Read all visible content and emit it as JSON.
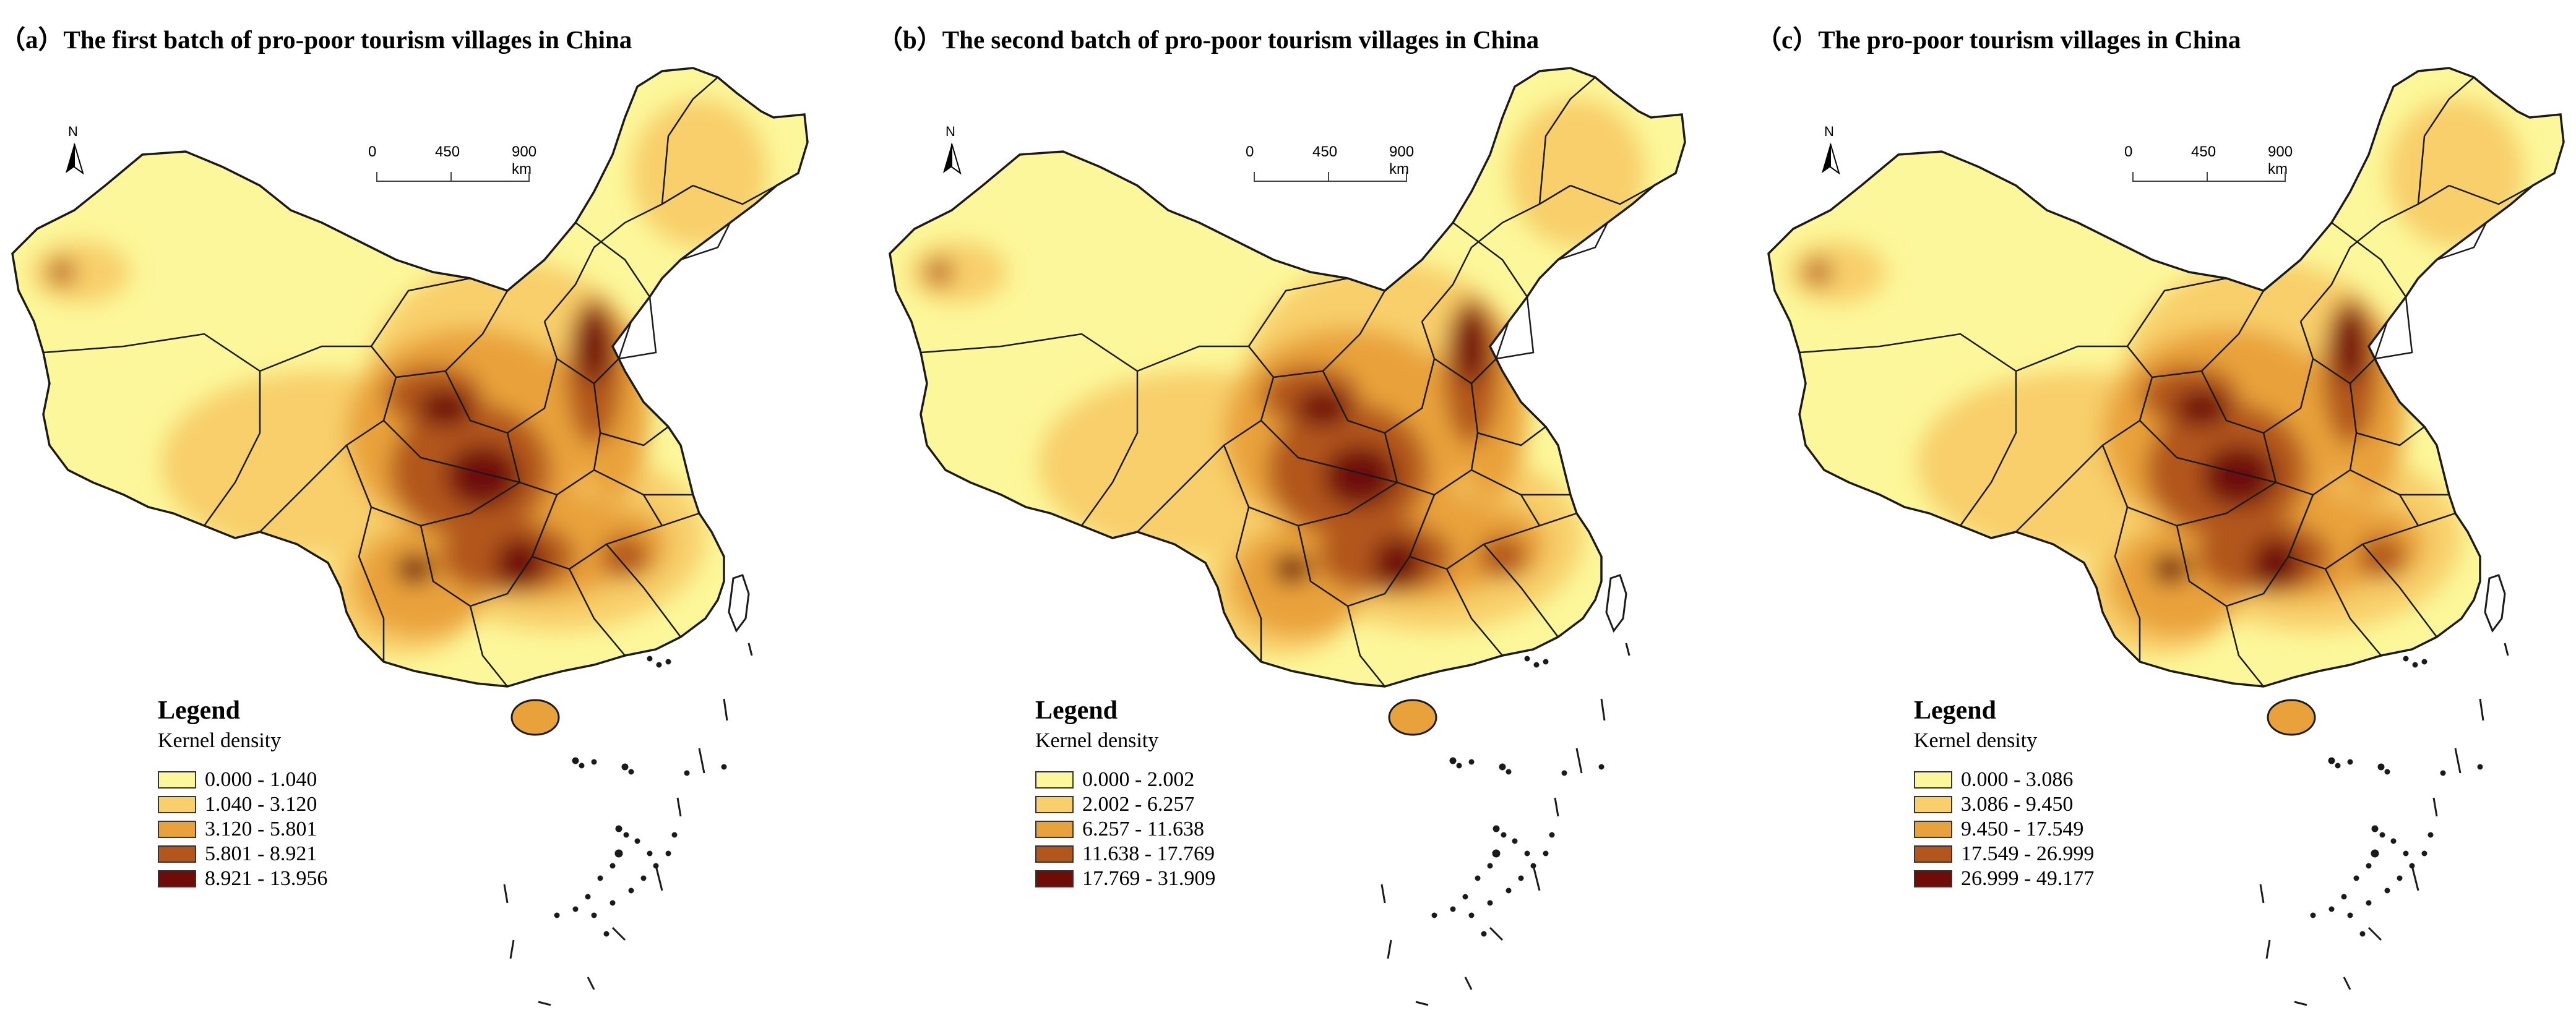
{
  "panels": [
    {
      "title": "（a）The first batch of pro-poor tourism villages in China",
      "north": "N",
      "scale_labels": [
        "0",
        "450",
        "900 km"
      ],
      "legend_title": "Legend",
      "legend_subtitle": "Kernel density",
      "legend_items": [
        "0.000 - 1.040",
        "1.040 - 3.120",
        "3.120 - 5.801",
        "5.801 - 8.921",
        "8.921 - 13.956"
      ]
    },
    {
      "title": "（b）The second batch of pro-poor tourism villages in China",
      "north": "N",
      "scale_labels": [
        "0",
        "450",
        "900 km"
      ],
      "legend_title": "Legend",
      "legend_subtitle": "Kernel density",
      "legend_items": [
        "0.000 - 2.002",
        "2.002 - 6.257",
        "6.257 - 11.638",
        "11.638 - 17.769",
        "17.769 - 31.909"
      ]
    },
    {
      "title": "（c）The  pro-poor tourism villages in China",
      "north": "N",
      "scale_labels": [
        "0",
        "450",
        "900 km"
      ],
      "legend_title": "Legend",
      "legend_subtitle": "Kernel density",
      "legend_items": [
        "0.000 - 3.086",
        "3.086 - 9.450",
        "9.450 - 17.549",
        "17.549 - 26.999",
        "26.999 - 49.177"
      ]
    }
  ],
  "colors": {
    "class_1": "#FCF79A",
    "class_2": "#F8CF6A",
    "class_3": "#E9A23B",
    "class_4": "#B2561E",
    "class_5": "#6E0C07",
    "boundary": "#1a1a1a"
  }
}
